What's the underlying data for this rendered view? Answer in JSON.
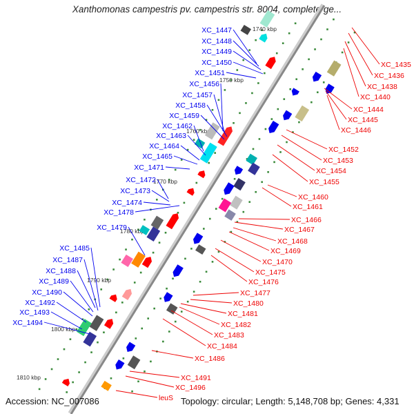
{
  "title": "Xanthomonas campestris pv. campestris str. 8004, complete ge...",
  "footer": {
    "accession": "Accession: NC_007086",
    "stats": "Topology: circular; Length: 5,148,708 bp; Genes: 4,331"
  },
  "colors": {
    "backbone": "#888888",
    "forward_label": "#0000ee",
    "reverse_label": "#ee0000",
    "tick": "#3a8a3a"
  },
  "kbp_ticks": [
    "1740 kbp",
    "1750 kbp",
    "1760 kbp",
    "1770 kbp",
    "1780 kbp",
    "1790 kbp",
    "1800 kbp",
    "1810 kbp"
  ],
  "forward_genes": [
    "XC_1447",
    "XC_1448",
    "XC_1449",
    "XC_1450",
    "XC_1451",
    "XC_1456",
    "XC_1457",
    "XC_1458",
    "XC_1459",
    "XC_1462",
    "XC_1463",
    "XC_1464",
    "XC_1465",
    "XC_1471",
    "XC_1472",
    "XC_1473",
    "XC_1474",
    "XC_1478",
    "XC_1479",
    "XC_1485",
    "XC_1487",
    "XC_1488",
    "XC_1489",
    "XC_1490",
    "XC_1492",
    "XC_1493",
    "XC_1494"
  ],
  "reverse_genes": [
    "XC_1435",
    "XC_1436",
    "XC_1438",
    "XC_1440",
    "XC_1444",
    "XC_1445",
    "XC_1446",
    "XC_1452",
    "XC_1453",
    "XC_1454",
    "XC_1455",
    "XC_1460",
    "XC_1461",
    "XC_1466",
    "XC_1467",
    "XC_1468",
    "XC_1469",
    "XC_1470",
    "XC_1475",
    "XC_1476",
    "XC_1477",
    "XC_1480",
    "XC_1481",
    "XC_1482",
    "XC_1483",
    "XC_1484",
    "XC_1486",
    "XC_1491",
    "XC_1496",
    "leuS"
  ]
}
